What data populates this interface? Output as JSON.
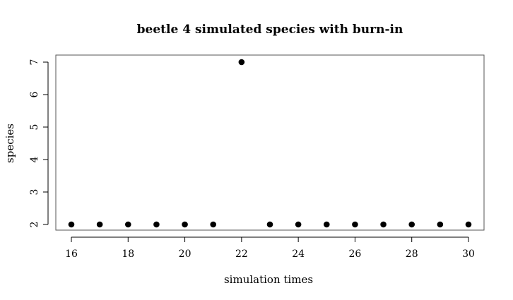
{
  "chart_data": {
    "type": "scatter",
    "title": "beetle 4 simulated species with burn-in",
    "xlabel": "simulation times",
    "ylabel": "species",
    "x": [
      16,
      17,
      18,
      19,
      20,
      21,
      22,
      23,
      24,
      25,
      26,
      27,
      28,
      29,
      30
    ],
    "y": [
      2,
      2,
      2,
      2,
      2,
      2,
      7,
      2,
      2,
      2,
      2,
      2,
      2,
      2,
      2
    ],
    "x_ticks": [
      16,
      18,
      20,
      22,
      24,
      26,
      28,
      30
    ],
    "x_tick_labels": [
      "16",
      "18",
      "20",
      "22",
      "24",
      "26",
      "28",
      "30"
    ],
    "y_ticks": [
      2,
      3,
      4,
      5,
      6,
      7
    ],
    "y_tick_labels": [
      "2",
      "3",
      "4",
      "5",
      "6",
      "7"
    ],
    "xlim": [
      16,
      30
    ],
    "ylim": [
      2,
      7
    ],
    "grid": false,
    "point_color": "#000000"
  }
}
